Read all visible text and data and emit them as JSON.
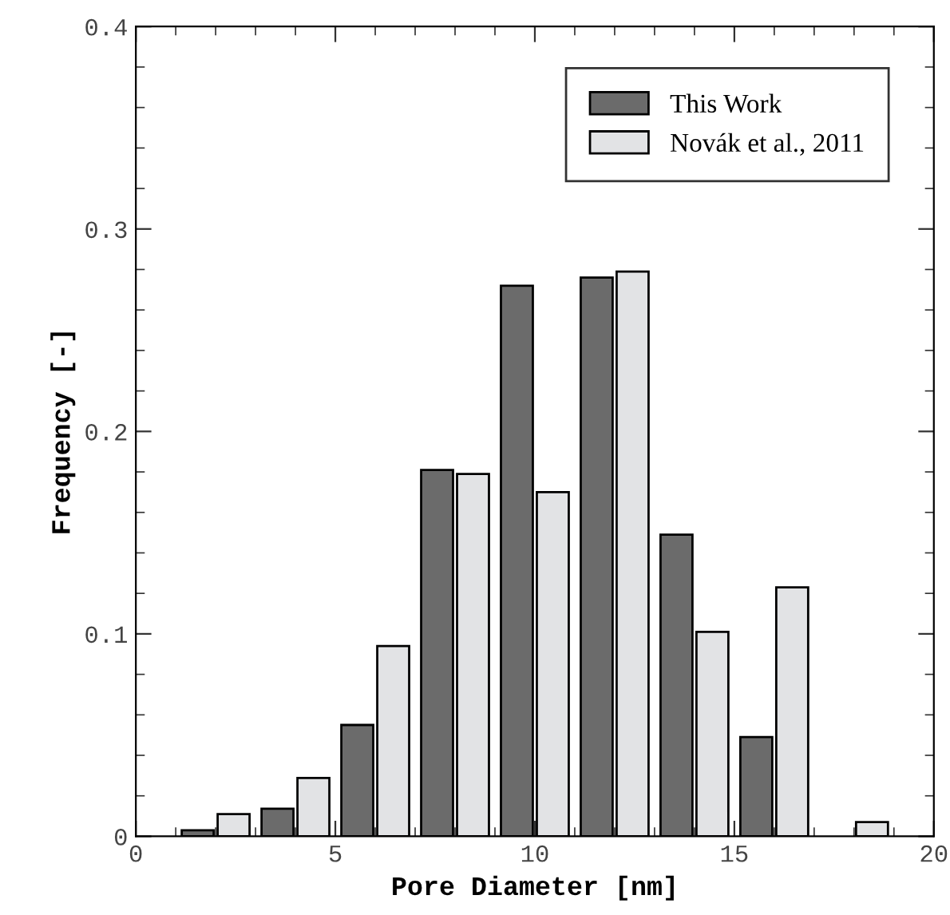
{
  "chart_data": {
    "type": "bar",
    "xlabel": "Pore Diameter [nm]",
    "ylabel": "Frequency [-]",
    "x": [
      2,
      4,
      6,
      8,
      10,
      12,
      14,
      16,
      18
    ],
    "series": [
      {
        "name": "This Work",
        "color": "#6b6b6b",
        "values": [
          0.003,
          0.0136,
          0.055,
          0.181,
          0.272,
          0.276,
          0.149,
          0.049,
          null
        ]
      },
      {
        "name": "Novák et al., 2011",
        "color": "#e2e3e5",
        "values": [
          0.011,
          0.0288,
          0.094,
          0.179,
          0.17,
          0.279,
          0.101,
          0.123,
          0.007
        ]
      }
    ],
    "xlim": [
      0,
      20
    ],
    "xticks": [
      0,
      5,
      10,
      15,
      20
    ],
    "ylim": [
      0,
      0.4
    ],
    "yticks": [
      {
        "value": 0,
        "label": "0"
      },
      0.1,
      0.2,
      0.3,
      0.4
    ],
    "grid": false,
    "legend": "top right"
  }
}
